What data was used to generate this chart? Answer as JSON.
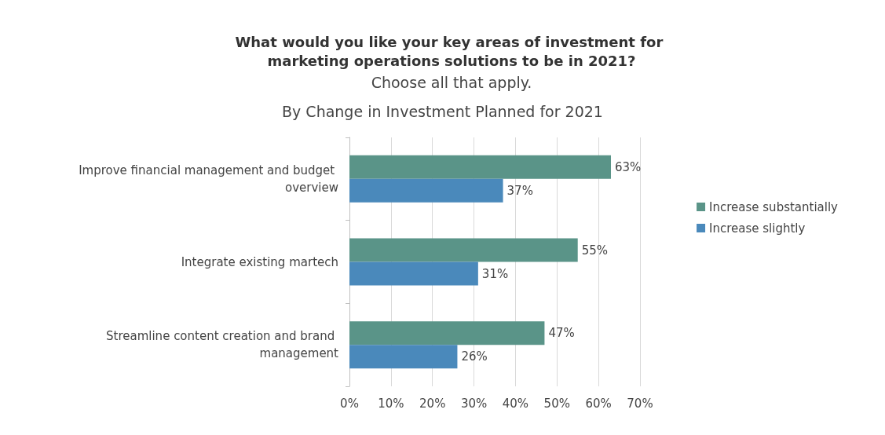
{
  "chart_data": {
    "type": "bar",
    "orientation": "horizontal",
    "title": "What would you like your key areas of investment for marketing operations solutions to be in 2021?",
    "subtitle": "Choose all that apply.",
    "annotations": [
      "By Change in Investment Planned for 2021"
    ],
    "categories": [
      "Improve financial management and budget overview",
      "Integrate existing martech",
      "Streamline content creation and brand management"
    ],
    "series": [
      {
        "name": "Increase substantially",
        "color": "#5a9488",
        "values": [
          63,
          55,
          47
        ],
        "value_labels": [
          "63%",
          "55%",
          "47%"
        ]
      },
      {
        "name": "Increase slightly",
        "color": "#4a89bb",
        "values": [
          37,
          31,
          26
        ],
        "value_labels": [
          "37%",
          "31%",
          "26%"
        ]
      }
    ],
    "xlim": [
      0,
      70
    ],
    "xticks": [
      {
        "value": 0,
        "label": "0%"
      },
      {
        "value": 10,
        "label": "10%"
      },
      {
        "value": 20,
        "label": "20%"
      },
      {
        "value": 30,
        "label": "30%"
      },
      {
        "value": 40,
        "label": "40%"
      },
      {
        "value": 50,
        "label": "50%"
      },
      {
        "value": 60,
        "label": "60%"
      },
      {
        "value": 70,
        "label": "70%"
      }
    ],
    "grid": "x",
    "legend": "right"
  }
}
